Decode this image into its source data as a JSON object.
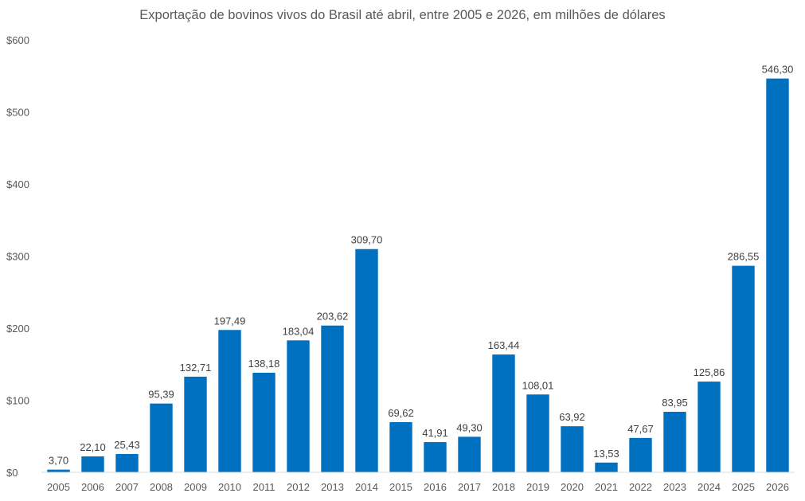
{
  "chart_data": {
    "type": "bar",
    "title": "Exportação de bovinos vivos do Brasil até abril, entre 2005 e 2026, em milhões de dólares",
    "xlabel": "",
    "ylabel": "",
    "ylim": [
      0,
      600
    ],
    "yticks": [
      {
        "value": 0,
        "label": "$0"
      },
      {
        "value": 100,
        "label": "$100"
      },
      {
        "value": 200,
        "label": "$200"
      },
      {
        "value": 300,
        "label": "$300"
      },
      {
        "value": 400,
        "label": "$400"
      },
      {
        "value": 500,
        "label": "$500"
      },
      {
        "value": 600,
        "label": "$600"
      }
    ],
    "grid": false,
    "bar_color": "#0070C0",
    "categories": [
      "2005",
      "2006",
      "2007",
      "2008",
      "2009",
      "2010",
      "2011",
      "2012",
      "2013",
      "2014",
      "2015",
      "2016",
      "2017",
      "2018",
      "2019",
      "2020",
      "2021",
      "2022",
      "2023",
      "2024",
      "2025",
      "2026"
    ],
    "values": [
      3.7,
      22.1,
      25.43,
      95.39,
      132.71,
      197.49,
      138.18,
      183.04,
      203.62,
      309.7,
      69.62,
      41.91,
      49.3,
      163.44,
      108.01,
      63.92,
      13.53,
      47.67,
      83.95,
      125.86,
      286.55,
      546.3
    ],
    "data_labels": [
      "3,70",
      "22,10",
      "25,43",
      "95,39",
      "132,71",
      "197,49",
      "138,18",
      "183,04",
      "203,62",
      "309,70",
      "69,62",
      "41,91",
      "49,30",
      "163,44",
      "108,01",
      "63,92",
      "13,53",
      "47,67",
      "83,95",
      "125,86",
      "286,55",
      "546,30"
    ]
  }
}
